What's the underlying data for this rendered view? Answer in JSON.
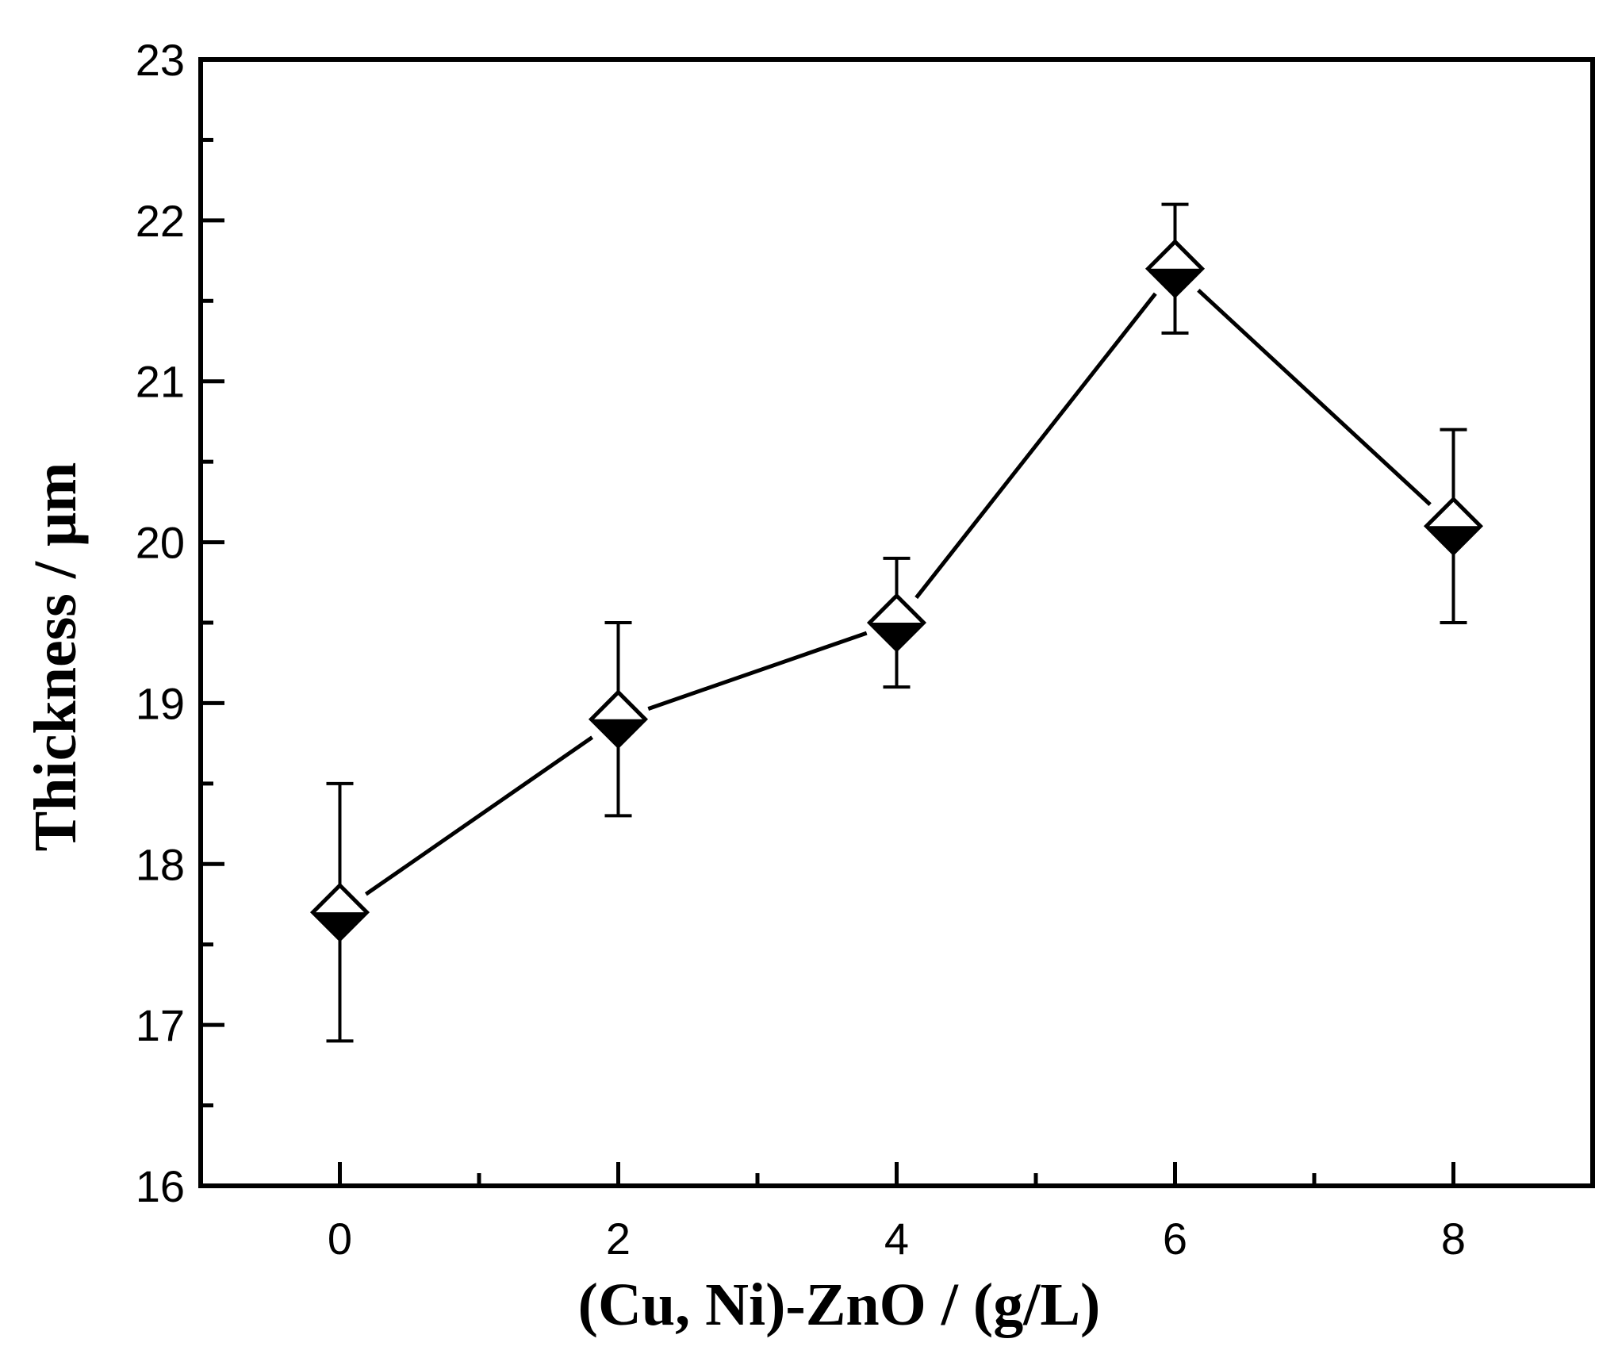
{
  "chart_data": {
    "type": "scatter",
    "title": "",
    "xlabel": "(Cu, Ni)-ZnO / (g/L)",
    "ylabel": "Thickness / μm",
    "xlim": [
      -1,
      9
    ],
    "ylim": [
      16,
      23
    ],
    "x_ticks": [
      "0",
      "2",
      "4",
      "6",
      "8"
    ],
    "y_ticks": [
      "16",
      "17",
      "18",
      "19",
      "20",
      "21",
      "22",
      "23"
    ],
    "grid": false,
    "legend": "none",
    "marker": "half-filled-diamond",
    "line_color": "#000000",
    "series": [
      {
        "x": [
          0,
          2,
          4,
          6,
          8
        ],
        "y": [
          17.7,
          18.9,
          19.5,
          21.7,
          20.1
        ],
        "error": [
          0.8,
          0.6,
          0.4,
          0.4,
          0.6
        ]
      }
    ]
  }
}
